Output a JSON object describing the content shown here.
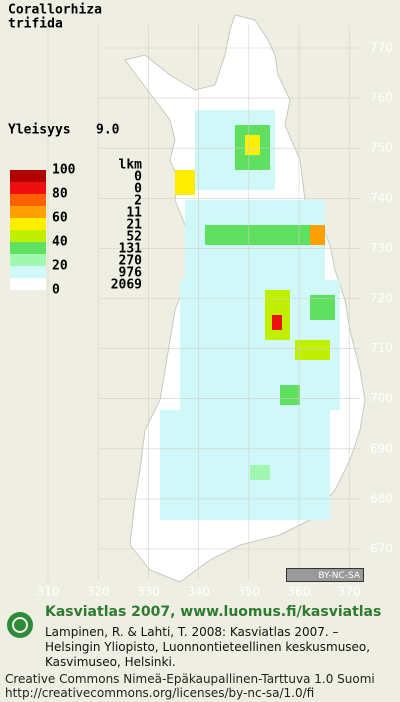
{
  "title": [
    "Corallorhiza",
    "trifida"
  ],
  "frequency": {
    "label": "Yleisyys",
    "value": "9.0"
  },
  "legend": {
    "header": "lkm",
    "scale_labels": [
      "100",
      "80",
      "60",
      "40",
      "20",
      "0"
    ],
    "classes": [
      {
        "count": "0",
        "color": "#b00000"
      },
      {
        "count": "0",
        "color": "#ee1010"
      },
      {
        "count": "2",
        "color": "#ff6000"
      },
      {
        "count": "11",
        "color": "#ffa000"
      },
      {
        "count": "21",
        "color": "#ffee00"
      },
      {
        "count": "52",
        "color": "#c0f000"
      },
      {
        "count": "131",
        "color": "#60e060"
      },
      {
        "count": "270",
        "color": "#a0f8b0"
      },
      {
        "count": "976",
        "color": "#d0f8f8"
      },
      {
        "count": "2069",
        "color": "#ffffff"
      }
    ]
  },
  "grid": {
    "y_labels": [
      "770",
      "760",
      "750",
      "740",
      "730",
      "720",
      "710",
      "700",
      "690",
      "680",
      "670"
    ],
    "x_labels": [
      "310",
      "320",
      "330",
      "340",
      "350",
      "360",
      "370"
    ]
  },
  "badge": "BY-NC-SA",
  "footer": {
    "heading": "Kasviatlas 2007, www.luomus.fi/kasviatlas",
    "citation": [
      "Lampinen, R. & Lahti, T. 2008: Kasviatlas 2007. –",
      "Helsingin Yliopisto, Luonnontieteellinen keskusmuseo,",
      "Kasvimuseo, Helsinki."
    ],
    "license": [
      "Creative Commons Nimeä-Epäkaupallinen-Tarttuva 1.0 Suomi",
      "http://creativecommons.org/licenses/by-nc-sa/1.0/fi"
    ]
  }
}
